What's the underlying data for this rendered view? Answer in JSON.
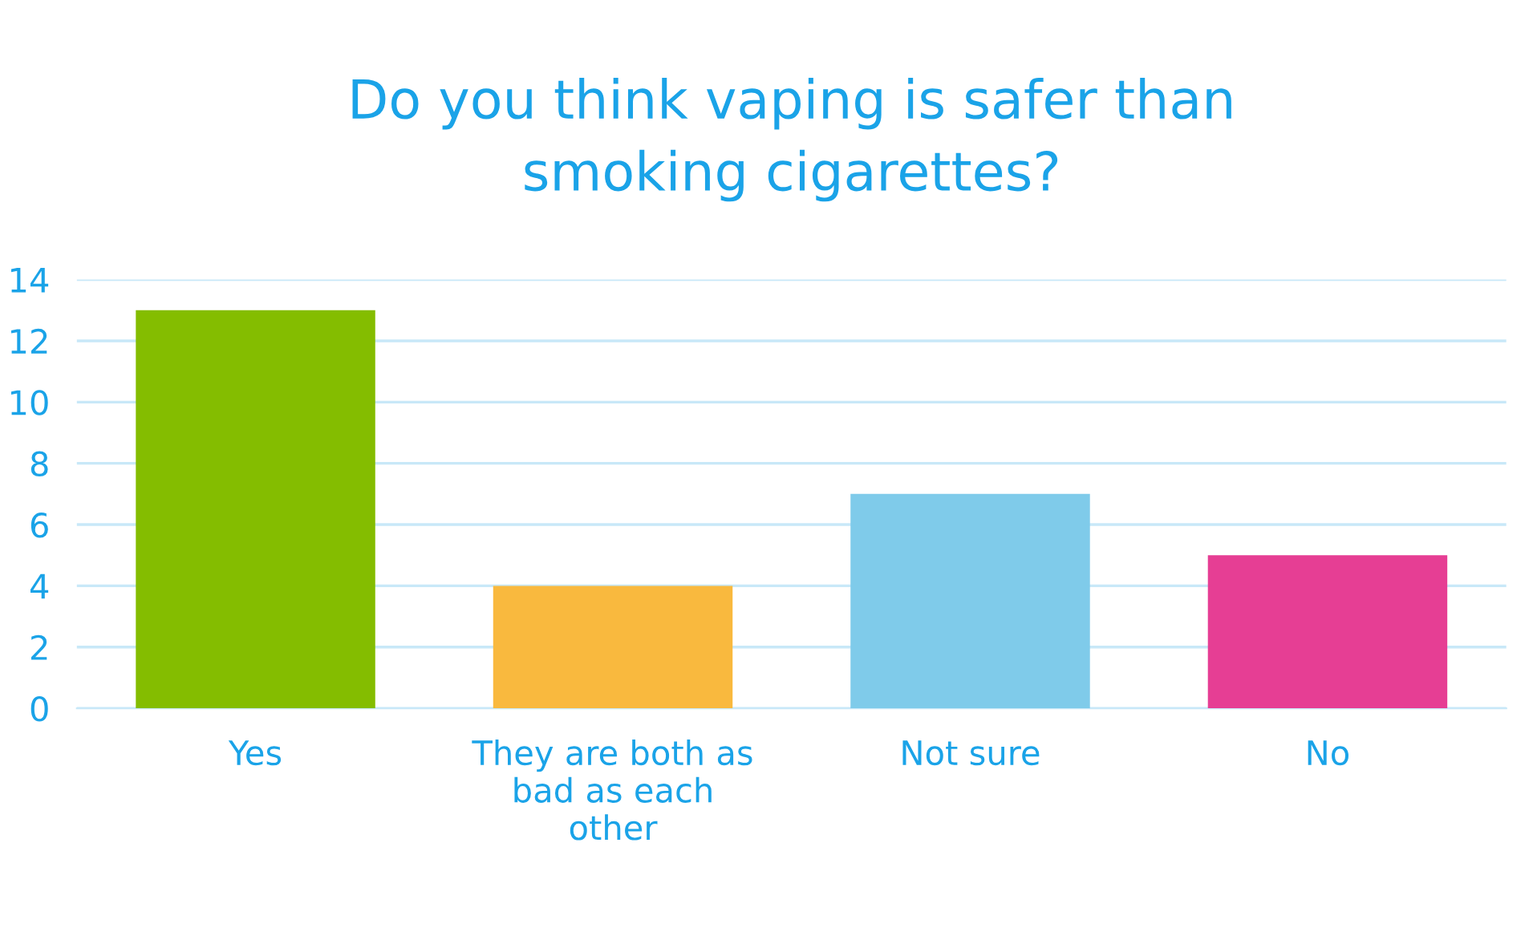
{
  "chart_data": {
    "type": "bar",
    "title": "Do you think vaping is safer than\nsmoking cigarettes?",
    "categories": [
      "Yes",
      "They are both as\nbad as each\nother",
      "Not sure",
      "No"
    ],
    "values": [
      13,
      4,
      7,
      5
    ],
    "colors": [
      "#84bd00",
      "#f9b93e",
      "#7fcbea",
      "#e63e94"
    ],
    "ylim": [
      0,
      14
    ],
    "yticks": [
      0,
      2,
      4,
      6,
      8,
      10,
      12,
      14
    ],
    "grid": "y",
    "legend": false
  }
}
